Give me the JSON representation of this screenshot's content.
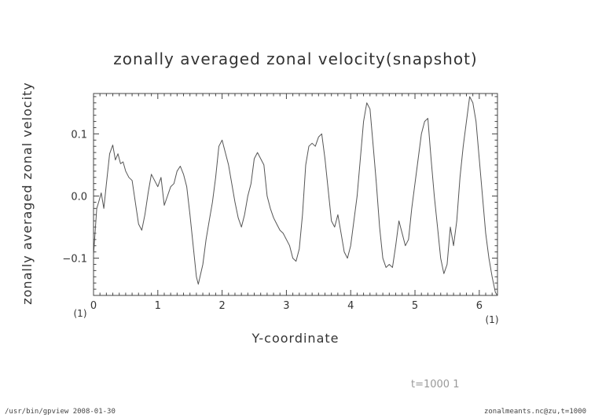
{
  "chart_data": {
    "type": "line",
    "title": "zonally averaged zonal velocity(snapshot)",
    "xlabel": "Y-coordinate",
    "ylabel": "zonally averaged zonal velocity",
    "xlim": [
      0,
      6.2832
    ],
    "ylim": [
      -0.16,
      0.165
    ],
    "xticks": [
      0,
      1,
      2,
      3,
      4,
      5,
      6
    ],
    "xtick_labels": [
      "0",
      "1",
      "2",
      "3",
      "4",
      "5",
      "6"
    ],
    "yticks": [
      -0.1,
      0.0,
      0.1
    ],
    "ytick_labels": [
      "−0.1",
      "0.0",
      "0.1"
    ],
    "x_unit_label": "(1)",
    "y_unit_label": "(1)",
    "grid": false,
    "series": [
      {
        "color": "#555555",
        "points": [
          [
            0.0,
            -0.095
          ],
          [
            0.05,
            -0.02
          ],
          [
            0.08,
            -0.01
          ],
          [
            0.12,
            0.005
          ],
          [
            0.16,
            -0.02
          ],
          [
            0.2,
            0.02
          ],
          [
            0.25,
            0.068
          ],
          [
            0.3,
            0.082
          ],
          [
            0.34,
            0.058
          ],
          [
            0.38,
            0.068
          ],
          [
            0.42,
            0.052
          ],
          [
            0.46,
            0.055
          ],
          [
            0.5,
            0.04
          ],
          [
            0.55,
            0.03
          ],
          [
            0.6,
            0.025
          ],
          [
            0.65,
            -0.01
          ],
          [
            0.7,
            -0.045
          ],
          [
            0.75,
            -0.055
          ],
          [
            0.8,
            -0.03
          ],
          [
            0.85,
            0.005
          ],
          [
            0.9,
            0.035
          ],
          [
            0.95,
            0.025
          ],
          [
            1.0,
            0.015
          ],
          [
            1.05,
            0.03
          ],
          [
            1.1,
            -0.015
          ],
          [
            1.15,
            0.0
          ],
          [
            1.2,
            0.015
          ],
          [
            1.25,
            0.02
          ],
          [
            1.3,
            0.04
          ],
          [
            1.35,
            0.048
          ],
          [
            1.4,
            0.035
          ],
          [
            1.45,
            0.015
          ],
          [
            1.5,
            -0.03
          ],
          [
            1.55,
            -0.08
          ],
          [
            1.6,
            -0.13
          ],
          [
            1.63,
            -0.142
          ],
          [
            1.7,
            -0.11
          ],
          [
            1.75,
            -0.07
          ],
          [
            1.8,
            -0.04
          ],
          [
            1.85,
            -0.01
          ],
          [
            1.9,
            0.03
          ],
          [
            1.95,
            0.08
          ],
          [
            2.0,
            0.09
          ],
          [
            2.05,
            0.07
          ],
          [
            2.1,
            0.05
          ],
          [
            2.15,
            0.02
          ],
          [
            2.2,
            -0.01
          ],
          [
            2.25,
            -0.035
          ],
          [
            2.3,
            -0.05
          ],
          [
            2.35,
            -0.03
          ],
          [
            2.4,
            0.0
          ],
          [
            2.45,
            0.02
          ],
          [
            2.5,
            0.06
          ],
          [
            2.55,
            0.07
          ],
          [
            2.6,
            0.06
          ],
          [
            2.65,
            0.05
          ],
          [
            2.7,
            0.0
          ],
          [
            2.75,
            -0.02
          ],
          [
            2.8,
            -0.035
          ],
          [
            2.85,
            -0.045
          ],
          [
            2.9,
            -0.055
          ],
          [
            2.95,
            -0.06
          ],
          [
            3.0,
            -0.07
          ],
          [
            3.05,
            -0.08
          ],
          [
            3.1,
            -0.1
          ],
          [
            3.15,
            -0.105
          ],
          [
            3.2,
            -0.085
          ],
          [
            3.25,
            -0.03
          ],
          [
            3.3,
            0.05
          ],
          [
            3.35,
            0.08
          ],
          [
            3.4,
            0.085
          ],
          [
            3.45,
            0.08
          ],
          [
            3.5,
            0.095
          ],
          [
            3.55,
            0.1
          ],
          [
            3.6,
            0.06
          ],
          [
            3.65,
            0.01
          ],
          [
            3.7,
            -0.04
          ],
          [
            3.75,
            -0.05
          ],
          [
            3.8,
            -0.03
          ],
          [
            3.85,
            -0.06
          ],
          [
            3.9,
            -0.09
          ],
          [
            3.95,
            -0.1
          ],
          [
            4.0,
            -0.08
          ],
          [
            4.05,
            -0.04
          ],
          [
            4.1,
            0.0
          ],
          [
            4.15,
            0.06
          ],
          [
            4.2,
            0.12
          ],
          [
            4.25,
            0.15
          ],
          [
            4.3,
            0.14
          ],
          [
            4.35,
            0.08
          ],
          [
            4.4,
            0.02
          ],
          [
            4.45,
            -0.05
          ],
          [
            4.5,
            -0.1
          ],
          [
            4.55,
            -0.115
          ],
          [
            4.6,
            -0.11
          ],
          [
            4.65,
            -0.115
          ],
          [
            4.7,
            -0.08
          ],
          [
            4.75,
            -0.04
          ],
          [
            4.8,
            -0.06
          ],
          [
            4.85,
            -0.08
          ],
          [
            4.9,
            -0.07
          ],
          [
            4.95,
            -0.02
          ],
          [
            5.0,
            0.02
          ],
          [
            5.05,
            0.06
          ],
          [
            5.1,
            0.1
          ],
          [
            5.15,
            0.12
          ],
          [
            5.2,
            0.125
          ],
          [
            5.25,
            0.06
          ],
          [
            5.3,
            0.0
          ],
          [
            5.35,
            -0.05
          ],
          [
            5.4,
            -0.1
          ],
          [
            5.45,
            -0.125
          ],
          [
            5.5,
            -0.11
          ],
          [
            5.55,
            -0.05
          ],
          [
            5.6,
            -0.08
          ],
          [
            5.65,
            -0.04
          ],
          [
            5.7,
            0.03
          ],
          [
            5.75,
            0.08
          ],
          [
            5.8,
            0.12
          ],
          [
            5.85,
            0.16
          ],
          [
            5.9,
            0.15
          ],
          [
            5.95,
            0.12
          ],
          [
            6.0,
            0.06
          ],
          [
            6.05,
            0.0
          ],
          [
            6.1,
            -0.06
          ],
          [
            6.15,
            -0.1
          ],
          [
            6.2,
            -0.13
          ],
          [
            6.25,
            -0.155
          ],
          [
            6.28,
            -0.16
          ]
        ]
      }
    ]
  },
  "time_label": "t=1000  1",
  "footer_left": "/usr/bin/gpview   2008-01-30",
  "footer_right": "zonalmeants.nc@zu,t=1000"
}
